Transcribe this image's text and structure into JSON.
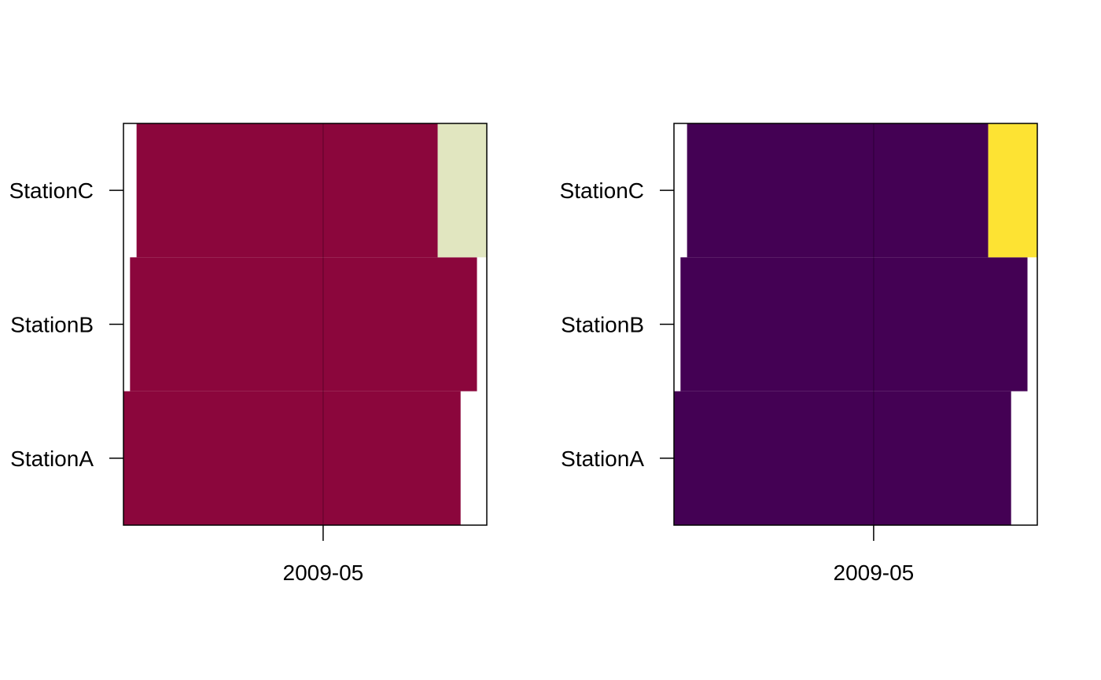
{
  "chart_data": [
    {
      "type": "heatmap",
      "title": "",
      "xlabel": "",
      "ylabel": "",
      "x_tick_labels": [
        "2009-05"
      ],
      "x_range": [
        "2009-03-01",
        "2009-06-20"
      ],
      "x_ticks": [
        "2009-05-01"
      ],
      "categories": [
        "StationA",
        "StationB",
        "StationC"
      ],
      "colors": {
        "low": "#8B063C",
        "high": "#E1E6C0"
      },
      "segments": [
        {
          "station": "StationA",
          "start": "2009-03-01",
          "end": "2009-06-12",
          "level": "low"
        },
        {
          "station": "StationB",
          "start": "2009-03-03",
          "end": "2009-06-17",
          "level": "low"
        },
        {
          "station": "StationC",
          "start": "2009-03-05",
          "end": "2009-06-05",
          "level": "low"
        },
        {
          "station": "StationC",
          "start": "2009-06-05",
          "end": "2009-06-20",
          "level": "high"
        }
      ],
      "grid": true,
      "legend": "none"
    },
    {
      "type": "heatmap",
      "title": "",
      "xlabel": "",
      "ylabel": "",
      "x_tick_labels": [
        "2009-05"
      ],
      "x_range": [
        "2009-03-01",
        "2009-06-20"
      ],
      "x_ticks": [
        "2009-05-01"
      ],
      "categories": [
        "StationA",
        "StationB",
        "StationC"
      ],
      "colors": {
        "low": "#440154",
        "high": "#FDE333"
      },
      "segments": [
        {
          "station": "StationA",
          "start": "2009-03-01",
          "end": "2009-06-12",
          "level": "low"
        },
        {
          "station": "StationB",
          "start": "2009-03-03",
          "end": "2009-06-17",
          "level": "low"
        },
        {
          "station": "StationC",
          "start": "2009-03-05",
          "end": "2009-06-05",
          "level": "low"
        },
        {
          "station": "StationC",
          "start": "2009-06-05",
          "end": "2009-06-20",
          "level": "high"
        }
      ],
      "grid": true,
      "legend": "none"
    }
  ]
}
